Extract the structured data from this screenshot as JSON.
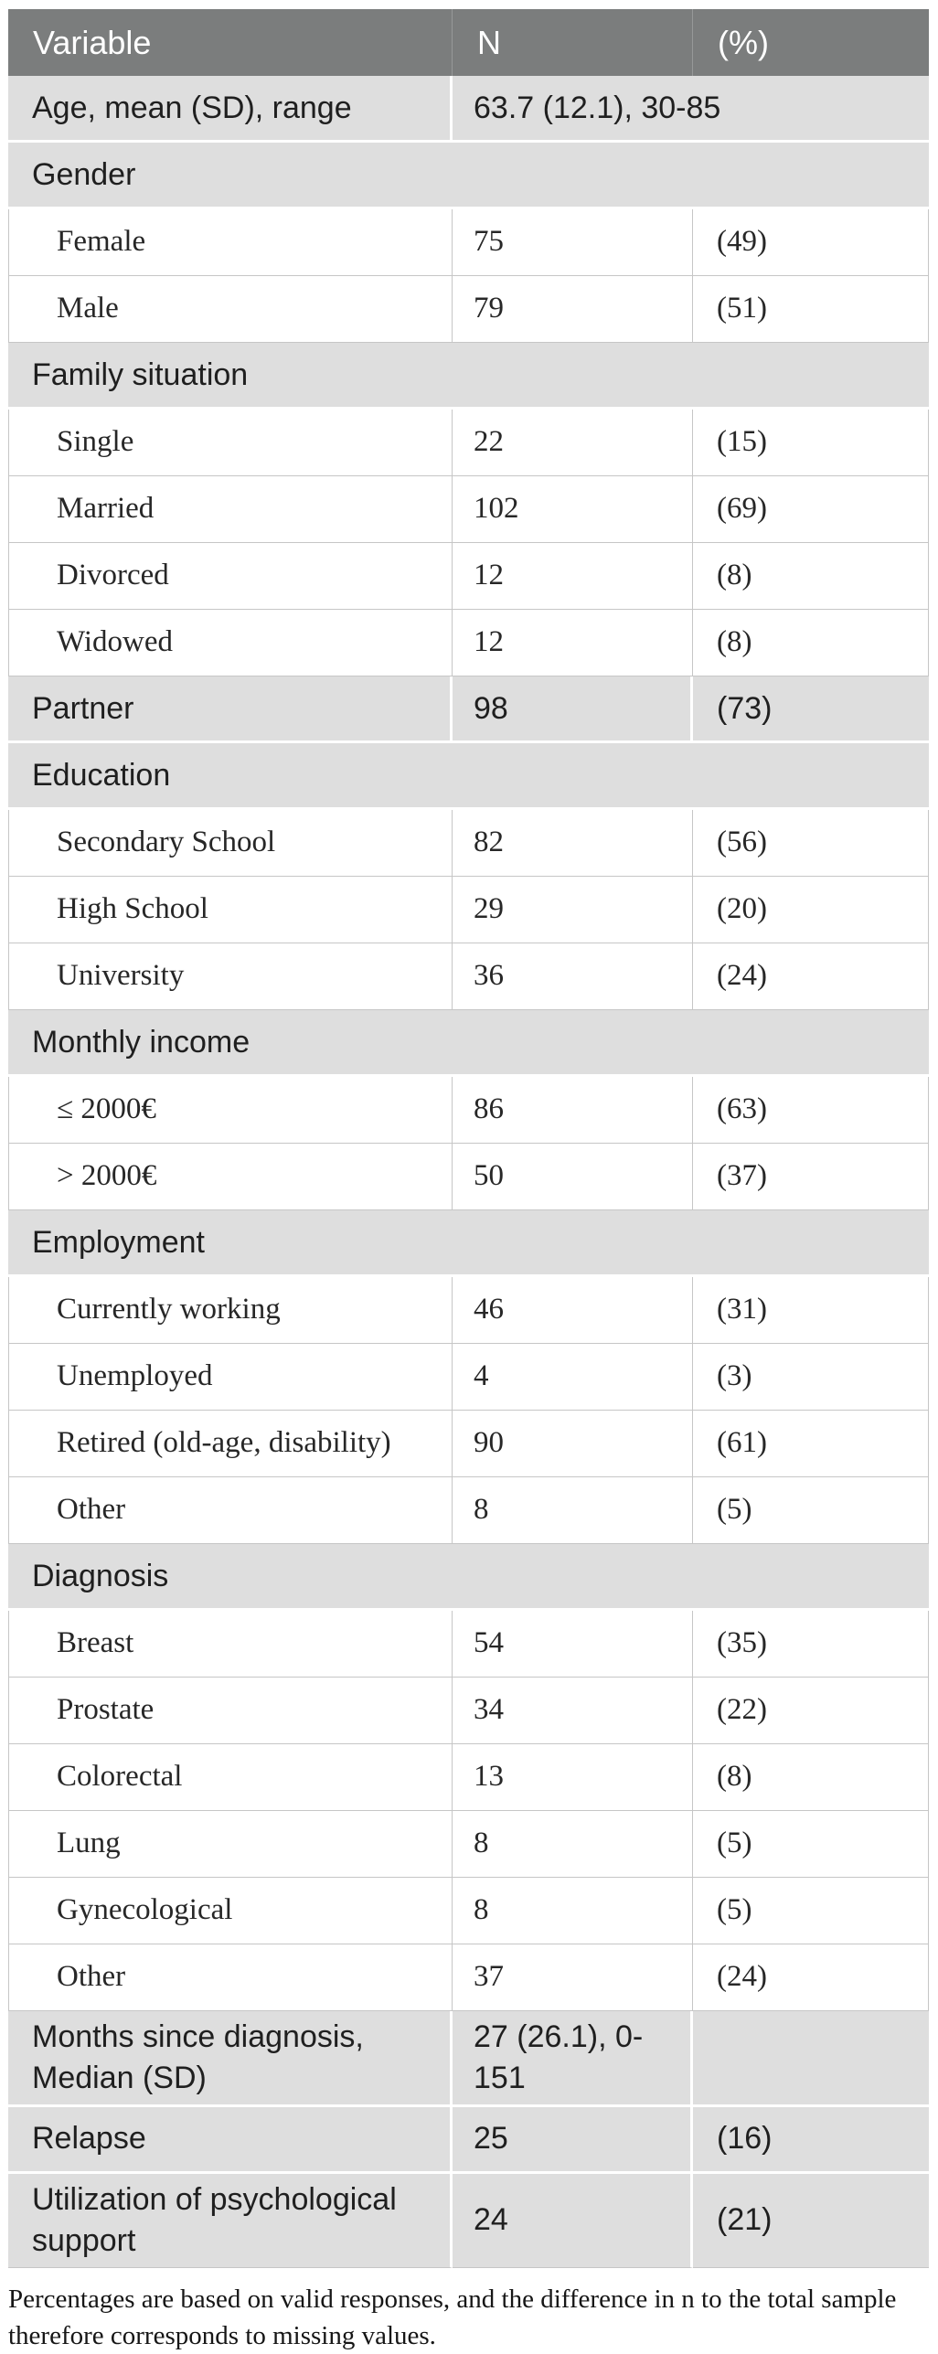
{
  "colors": {
    "header_bg": "#7b7d7d",
    "header_text": "#ffffff",
    "row_gray": "#dedede",
    "row_white": "#ffffff",
    "border_gray": "#c6c6c6",
    "text_dark": "#1f1f1f"
  },
  "header": {
    "columns": [
      "Variable",
      "N",
      "(%)"
    ]
  },
  "table": {
    "rows": [
      {
        "type": "gray-span",
        "label": "Age, mean (SD), range",
        "value": "63.7 (12.1), 30-85"
      },
      {
        "type": "section",
        "label": "Gender"
      },
      {
        "type": "data",
        "label": "Female",
        "n": "75",
        "pct": "(49)"
      },
      {
        "type": "data",
        "label": "Male",
        "n": "79",
        "pct": "(51)"
      },
      {
        "type": "section",
        "label": "Family situation"
      },
      {
        "type": "data",
        "label": "Single",
        "n": "22",
        "pct": "(15)"
      },
      {
        "type": "data",
        "label": "Married",
        "n": "102",
        "pct": "(69)"
      },
      {
        "type": "data",
        "label": "Divorced",
        "n": "12",
        "pct": "(8)"
      },
      {
        "type": "data",
        "label": "Widowed",
        "n": "12",
        "pct": "(8)"
      },
      {
        "type": "gray",
        "label": "Partner",
        "n": "98",
        "pct": "(73)"
      },
      {
        "type": "section",
        "label": "Education"
      },
      {
        "type": "data",
        "label": "Secondary School",
        "n": "82",
        "pct": "(56)"
      },
      {
        "type": "data",
        "label": "High School",
        "n": "29",
        "pct": "(20)"
      },
      {
        "type": "data",
        "label": "University",
        "n": "36",
        "pct": "(24)"
      },
      {
        "type": "section",
        "label": "Monthly income"
      },
      {
        "type": "data",
        "label": "≤ 2000€",
        "n": "86",
        "pct": "(63)"
      },
      {
        "type": "data",
        "label": "> 2000€",
        "n": "50",
        "pct": "(37)"
      },
      {
        "type": "section",
        "label": "Employment"
      },
      {
        "type": "data",
        "label": "Currently working",
        "n": "46",
        "pct": "(31)"
      },
      {
        "type": "data",
        "label": "Unemployed",
        "n": "4",
        "pct": "(3)"
      },
      {
        "type": "data",
        "label": "Retired (old-age, disability)",
        "n": "90",
        "pct": "(61)"
      },
      {
        "type": "data",
        "label": "Other",
        "n": "8",
        "pct": "(5)"
      },
      {
        "type": "section",
        "label": "Diagnosis"
      },
      {
        "type": "data",
        "label": "Breast",
        "n": "54",
        "pct": "(35)"
      },
      {
        "type": "data",
        "label": "Prostate",
        "n": "34",
        "pct": "(22)"
      },
      {
        "type": "data",
        "label": "Colorectal",
        "n": "13",
        "pct": "(8)"
      },
      {
        "type": "data",
        "label": "Lung",
        "n": "8",
        "pct": "(5)"
      },
      {
        "type": "data",
        "label": "Gynecological",
        "n": "8",
        "pct": "(5)"
      },
      {
        "type": "data",
        "label": "Other",
        "n": "37",
        "pct": "(24)"
      },
      {
        "type": "gray",
        "label": "Months since diagnosis, Median (SD)",
        "n": "27 (26.1), 0-151",
        "pct": ""
      },
      {
        "type": "gray",
        "label": "Relapse",
        "n": "25",
        "pct": "(16)"
      },
      {
        "type": "gray",
        "label": "Utilization of psychological support",
        "n": "24",
        "pct": "(21)"
      }
    ]
  },
  "footnote": {
    "text": "Percentages are based on valid responses, and the difference in n to the total sample therefore corresponds to missing values."
  }
}
